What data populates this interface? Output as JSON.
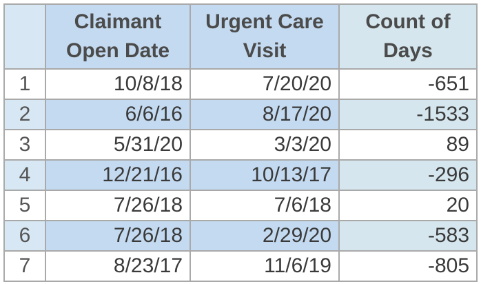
{
  "table": {
    "headers": {
      "index": "",
      "col_a": [
        "Claimant",
        "Open Date"
      ],
      "col_b": [
        "Urgent Care",
        "Visit"
      ],
      "col_c": [
        "Count of",
        "Days"
      ]
    },
    "rows": [
      {
        "index": "1",
        "open_date": "10/8/18",
        "visit": "7/20/20",
        "days": "-651"
      },
      {
        "index": "2",
        "open_date": "6/6/16",
        "visit": "8/17/20",
        "days": "-1533"
      },
      {
        "index": "3",
        "open_date": "5/31/20",
        "visit": "3/3/20",
        "days": "89"
      },
      {
        "index": "4",
        "open_date": "12/21/16",
        "visit": "10/13/17",
        "days": "-296"
      },
      {
        "index": "5",
        "open_date": "7/26/18",
        "visit": "7/6/18",
        "days": "20"
      },
      {
        "index": "6",
        "open_date": "7/26/18",
        "visit": "2/29/20",
        "days": "-583"
      },
      {
        "index": "7",
        "open_date": "8/23/17",
        "visit": "11/6/19",
        "days": "-805"
      }
    ]
  },
  "colors": {
    "header_blue": "#c4daf0",
    "header_teal": "#d5e6ee",
    "index_blue": "#d7e8f4",
    "grid": "#a9a9a9"
  }
}
